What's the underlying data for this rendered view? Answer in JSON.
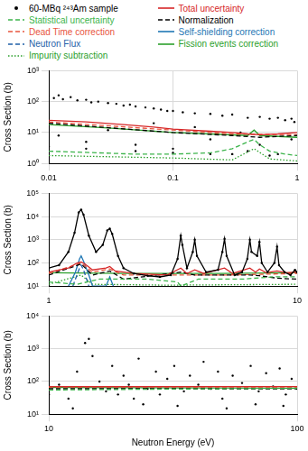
{
  "chart_data": [
    {
      "type": "scatter",
      "legend": "top",
      "log": true,
      "grid": true,
      "y_label": "Cross Section (b)",
      "xlim": [
        0.01,
        1
      ],
      "xticks": [
        0.01,
        0.1,
        1
      ],
      "ylim": [
        1,
        1000
      ],
      "yticks": [
        {
          "value": 1,
          "label": "10⁰"
        },
        {
          "value": 10,
          "label": "10¹"
        },
        {
          "value": 100,
          "label": "10²"
        },
        {
          "value": 1000,
          "label": "10³"
        }
      ],
      "series": [
        {
          "name": "60-MBq ²⁴³Am sample",
          "type": "scatter",
          "marker": "circle",
          "color": "#000000",
          "x": [
            0.01,
            0.011,
            0.012,
            0.013,
            0.015,
            0.017,
            0.02,
            0.022,
            0.025,
            0.03,
            0.035,
            0.04,
            0.045,
            0.05,
            0.06,
            0.07,
            0.08,
            0.09,
            0.1,
            0.12,
            0.15,
            0.2,
            0.25,
            0.3,
            0.4,
            0.5,
            0.6,
            0.7,
            0.8,
            0.9,
            0.95,
            0.012,
            0.02,
            0.03,
            0.05,
            0.07,
            0.1,
            0.15,
            0.2,
            0.3,
            0.35,
            0.5,
            0.7,
            0.9,
            0.01,
            0.02,
            0.05,
            0.1,
            0.2,
            0.3,
            0.4,
            0.6
          ],
          "values": [
            150,
            130,
            160,
            120,
            140,
            110,
            115,
            95,
            100,
            90,
            85,
            75,
            80,
            70,
            65,
            60,
            55,
            50,
            50,
            45,
            42,
            40,
            35,
            38,
            30,
            32,
            28,
            30,
            25,
            28,
            22,
            8,
            5,
            12,
            4,
            20,
            3,
            15,
            6,
            2,
            10,
            4,
            2,
            6,
            3.5,
            3,
            2.5,
            2.2,
            2,
            2,
            2.5,
            1.8
          ]
        },
        {
          "name": "Total uncertainty",
          "type": "line",
          "line_style": "solid",
          "color": "#d62728",
          "x": [
            0.01,
            0.02,
            0.04,
            0.07,
            0.1,
            0.2,
            0.3,
            0.4,
            0.5,
            0.7,
            1
          ],
          "values": [
            25,
            22,
            18,
            15,
            13,
            11,
            10,
            9,
            8.5,
            9,
            10
          ]
        },
        {
          "name": "Statistical uncertainty",
          "type": "line",
          "line_style": "dashed",
          "color": "#3cb44b",
          "x": [
            0.01,
            0.05,
            0.1,
            0.2,
            0.3,
            0.4,
            0.45,
            0.5,
            0.6,
            0.8,
            1
          ],
          "values": [
            2.5,
            2,
            2,
            2.2,
            3,
            5,
            6,
            4,
            2.5,
            2,
            1.8
          ]
        },
        {
          "name": "Normalization",
          "type": "line",
          "line_style": "dashed",
          "color": "#000000",
          "x": [
            0.01,
            0.1,
            0.3,
            0.5,
            1
          ],
          "values": [
            20,
            10,
            8,
            7,
            8
          ]
        },
        {
          "name": "Dead Time correction",
          "type": "line",
          "line_style": "dashed",
          "color": "#e8553e",
          "x": [
            0.01,
            0.1,
            0.3,
            1
          ],
          "values": [
            22,
            12,
            9,
            8.5
          ]
        },
        {
          "name": "Self-shielding correction",
          "type": "line",
          "line_style": "solid",
          "color": "#1f77b4",
          "x": [],
          "values": []
        },
        {
          "name": "Neutron Flux",
          "type": "line",
          "line_style": "dashed",
          "color": "#1f5fa8",
          "x": [],
          "values": []
        },
        {
          "name": "Fission events correction",
          "type": "line",
          "line_style": "solid",
          "color": "#2ca02c",
          "x": [
            0.01,
            0.03,
            0.1,
            0.2,
            0.4,
            0.45,
            0.5,
            1
          ],
          "values": [
            18,
            14,
            10,
            9,
            8,
            12,
            8,
            7
          ]
        },
        {
          "name": "Impurity subtraction",
          "type": "line",
          "line_style": "dotted",
          "color": "#2ca02c",
          "x": [
            0.01,
            0.1,
            0.3,
            0.45,
            0.6,
            1
          ],
          "values": [
            1.8,
            1.5,
            1.3,
            3,
            1.4,
            1.2
          ]
        }
      ]
    },
    {
      "type": "scatter",
      "log": true,
      "grid": true,
      "y_label": "Cross Section (b)",
      "xlim": [
        1,
        10
      ],
      "xticks": [
        1,
        10
      ],
      "ylim": [
        10,
        100000
      ],
      "yticks": [
        {
          "value": 10,
          "label": "10¹"
        },
        {
          "value": 100,
          "label": "10²"
        },
        {
          "value": 1000,
          "label": "10³"
        },
        {
          "value": 10000,
          "label": "10⁴"
        },
        {
          "value": 100000,
          "label": "10⁵"
        }
      ],
      "series": [
        {
          "name": "60-MBq ²⁴³Am sample",
          "type": "line",
          "marker": "circle",
          "color": "#000000",
          "x": [
            1,
            1.1,
            1.2,
            1.27,
            1.32,
            1.35,
            1.38,
            1.45,
            1.55,
            1.65,
            1.72,
            1.76,
            1.8,
            1.9,
            2.0,
            2.2,
            2.5,
            2.8,
            3.1,
            3.3,
            3.4,
            3.45,
            3.6,
            3.8,
            3.87,
            3.95,
            4.3,
            4.8,
            5.0,
            5.1,
            5.2,
            5.6,
            6.0,
            6.3,
            6.45,
            6.55,
            6.9,
            7.05,
            7.2,
            7.6,
            8.1,
            8.3,
            8.45,
            8.9,
            9.4,
            9.8,
            10
          ],
          "values": [
            60,
            80,
            300,
            2000,
            15000,
            20000,
            12000,
            1500,
            300,
            600,
            2500,
            3000,
            1800,
            200,
            60,
            35,
            28,
            25,
            30,
            150,
            1500,
            600,
            60,
            300,
            1000,
            200,
            40,
            50,
            300,
            1100,
            200,
            30,
            40,
            150,
            1000,
            300,
            200,
            800,
            100,
            40,
            100,
            500,
            80,
            40,
            30,
            50,
            40
          ]
        },
        {
          "name": "Total uncertainty",
          "type": "line",
          "line_style": "solid",
          "color": "#d62728",
          "x": [
            1,
            1.2,
            1.3,
            1.35,
            1.4,
            1.5,
            1.7,
            1.76,
            1.85,
            2.2,
            3,
            3.4,
            3.6,
            3.87,
            4.2,
            5.1,
            5.5,
            6.45,
            6.8,
            7.05,
            7.5,
            8.3,
            9,
            10
          ],
          "values": [
            40,
            60,
            100,
            110,
            90,
            50,
            60,
            70,
            45,
            35,
            30,
            60,
            35,
            50,
            35,
            60,
            35,
            60,
            40,
            55,
            38,
            45,
            38,
            40
          ]
        },
        {
          "name": "Statistical uncertainty",
          "type": "line",
          "line_style": "dashed",
          "color": "#3cb44b",
          "x": [
            1,
            1.3,
            1.6,
            2.5,
            3.3,
            3.4,
            4,
            6,
            8,
            10
          ],
          "values": [
            15,
            12,
            20,
            20,
            15,
            10,
            20,
            20,
            25,
            25
          ]
        },
        {
          "name": "Normalization",
          "type": "line",
          "line_style": "dashed",
          "color": "#000000",
          "x": [
            1,
            1.35,
            1.5,
            1.76,
            2,
            3.4,
            3.87,
            5.1,
            6.45,
            7.05,
            8.3,
            10
          ],
          "values": [
            30,
            90,
            30,
            45,
            20,
            40,
            30,
            30,
            30,
            28,
            22,
            20
          ]
        },
        {
          "name": "Dead Time correction",
          "type": "line",
          "line_style": "dashed",
          "color": "#e8553e",
          "x": [
            1,
            1.35,
            1.5,
            1.76,
            2,
            5,
            10
          ],
          "values": [
            35,
            100,
            40,
            55,
            30,
            30,
            35
          ]
        },
        {
          "name": "Self-shielding correction",
          "type": "line",
          "line_style": "solid",
          "color": "#1f77b4",
          "x": [
            1.2,
            1.28,
            1.33,
            1.35,
            1.38,
            1.45,
            1.5,
            1.7,
            1.76,
            1.82
          ],
          "values": [
            10,
            40,
            150,
            200,
            120,
            30,
            10,
            10,
            25,
            10
          ]
        },
        {
          "name": "Neutron Flux",
          "type": "line",
          "line_style": "dashed",
          "color": "#1f5fa8",
          "x": [
            1.25,
            1.33,
            1.35,
            1.38,
            1.45
          ],
          "values": [
            10,
            60,
            80,
            50,
            10
          ]
        },
        {
          "name": "Fission events correction",
          "type": "line",
          "line_style": "solid",
          "color": "#2ca02c",
          "x": [
            1,
            2,
            5,
            10
          ],
          "values": [
            38,
            35,
            35,
            38
          ]
        },
        {
          "name": "Impurity subtraction",
          "type": "line",
          "line_style": "dotted",
          "color": "#2ca02c",
          "x": [
            1,
            1.35,
            1.5,
            3,
            10
          ],
          "values": [
            12,
            30,
            12,
            11,
            12
          ]
        }
      ]
    },
    {
      "type": "scatter",
      "log": true,
      "grid": true,
      "y_label": "Cross Section (b)",
      "x_label": "Neutron Energy (eV)",
      "xlim": [
        10,
        100
      ],
      "xticks": [
        10,
        100
      ],
      "ylim": [
        10,
        10000
      ],
      "yticks": [
        {
          "value": 10,
          "label": "10¹"
        },
        {
          "value": 100,
          "label": "10²"
        },
        {
          "value": 1000,
          "label": "10³"
        },
        {
          "value": 10000,
          "label": "10⁴"
        }
      ],
      "series": [
        {
          "name": "60-MBq ²⁴³Am sample",
          "type": "scatter",
          "marker": "circle",
          "color": "#000000",
          "x": [
            10,
            11,
            12,
            13,
            14,
            14.5,
            15,
            16,
            17,
            18,
            19,
            20,
            21,
            22,
            23,
            25,
            27,
            28,
            30,
            32,
            35,
            37,
            40,
            42,
            45,
            48,
            50,
            55,
            60,
            65,
            70,
            75,
            80,
            85,
            90,
            95,
            100,
            12.5,
            24,
            33,
            52,
            68,
            88
          ],
          "values": [
            40,
            80,
            30,
            200,
            1500,
            2000,
            600,
            100,
            50,
            300,
            40,
            150,
            80,
            30,
            500,
            60,
            200,
            40,
            120,
            300,
            50,
            150,
            80,
            400,
            60,
            200,
            30,
            150,
            90,
            300,
            50,
            180,
            70,
            250,
            40,
            120,
            60,
            15,
            20,
            18,
            15,
            20,
            18
          ]
        },
        {
          "name": "Total uncertainty",
          "type": "line",
          "line_style": "solid",
          "color": "#d62728",
          "x": [
            10,
            100
          ],
          "values": [
            70,
            70
          ]
        },
        {
          "name": "Statistical uncertainty",
          "type": "line",
          "line_style": "dashed",
          "color": "#3cb44b",
          "x": [
            10,
            50,
            100
          ],
          "values": [
            55,
            60,
            62
          ]
        },
        {
          "name": "Normalization",
          "type": "line",
          "line_style": "dashed",
          "color": "#000000",
          "x": [
            10,
            100
          ],
          "values": [
            60,
            60
          ]
        },
        {
          "name": "Dead Time correction",
          "type": "line",
          "line_style": "dashed",
          "color": "#e8553e",
          "x": [
            10,
            100
          ],
          "values": [
            68,
            68
          ]
        },
        {
          "name": "Fission events correction",
          "type": "line",
          "line_style": "solid",
          "color": "#2ca02c",
          "x": [
            10,
            100
          ],
          "values": [
            65,
            62
          ]
        }
      ]
    }
  ]
}
